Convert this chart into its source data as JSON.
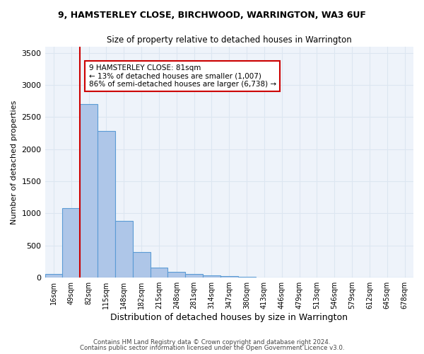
{
  "title_line1": "9, HAMSTERLEY CLOSE, BIRCHWOOD, WARRINGTON, WA3 6UF",
  "title_line2": "Size of property relative to detached houses in Warrington",
  "xlabel": "Distribution of detached houses by size in Warrington",
  "ylabel": "Number of detached properties",
  "footer_line1": "Contains HM Land Registry data © Crown copyright and database right 2024.",
  "footer_line2": "Contains public sector information licensed under the Open Government Licence v3.0.",
  "categories": [
    "16sqm",
    "49sqm",
    "82sqm",
    "115sqm",
    "148sqm",
    "182sqm",
    "215sqm",
    "248sqm",
    "281sqm",
    "314sqm",
    "347sqm",
    "380sqm",
    "413sqm",
    "446sqm",
    "479sqm",
    "513sqm",
    "546sqm",
    "579sqm",
    "612sqm",
    "645sqm",
    "678sqm"
  ],
  "values": [
    60,
    1080,
    2700,
    2280,
    880,
    400,
    155,
    90,
    55,
    35,
    25,
    10,
    5,
    2,
    1,
    0,
    0,
    0,
    0,
    0,
    0
  ],
  "bar_color": "#aec6e8",
  "bar_edgecolor": "#5b9bd5",
  "bar_linewidth": 0.8,
  "grid_color": "#dce6f1",
  "bg_color": "#eef3fa",
  "annotation_text_line1": "9 HAMSTERLEY CLOSE: 81sqm",
  "annotation_text_line2": "← 13% of detached houses are smaller (1,007)",
  "annotation_text_line3": "86% of semi-detached houses are larger (6,738) →",
  "annotation_box_color": "#ffffff",
  "annotation_box_edgecolor": "#cc0000",
  "vline_color": "#cc0000",
  "ylim": [
    0,
    3600
  ],
  "yticks": [
    0,
    500,
    1000,
    1500,
    2000,
    2500,
    3000,
    3500
  ]
}
